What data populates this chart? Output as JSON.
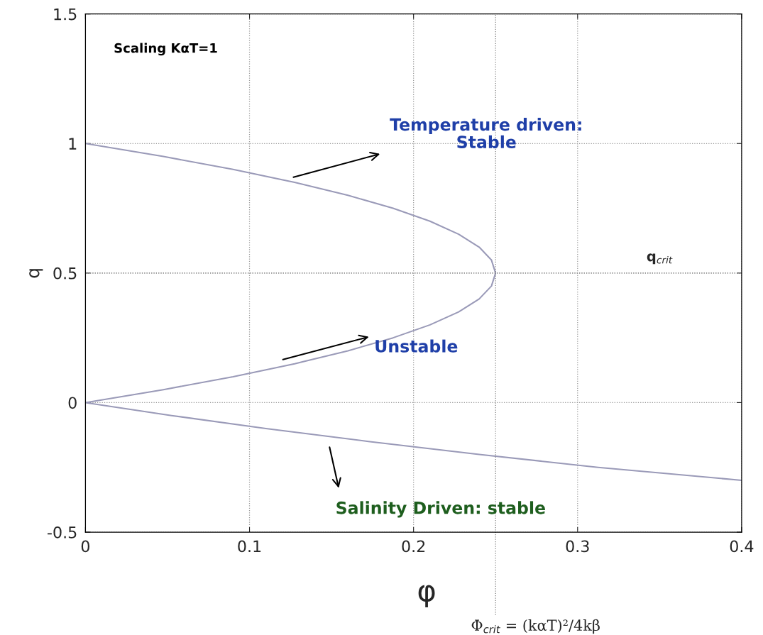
{
  "chart_data": {
    "type": "line",
    "xlabel": "φ",
    "ylabel": "q",
    "series": [
      {
        "color": "#9a9ab8",
        "x": [
          0,
          0.0475,
          0.09,
          0.1275,
          0.16,
          0.1875,
          0.21,
          0.2275,
          0.24,
          0.2475,
          0.25,
          0.2475,
          0.24,
          0.2275,
          0.21,
          0.1875,
          0.16,
          0.1275,
          0.09,
          0.0475,
          0,
          0.0525,
          0.11,
          0.1725,
          0.24,
          0.3125,
          0.4
        ],
        "values": [
          1,
          0.95,
          0.9,
          0.85,
          0.8,
          0.75,
          0.7,
          0.65,
          0.6,
          0.55,
          0.5,
          0.45,
          0.4,
          0.35,
          0.3,
          0.25,
          0.2,
          0.15,
          0.1,
          0.05,
          0,
          -0.05,
          -0.1,
          -0.15,
          -0.2,
          -0.25,
          -0.3
        ]
      }
    ],
    "xlim": [
      0,
      0.4
    ],
    "xticks": [
      0,
      0.1,
      0.2,
      0.3,
      0.4
    ],
    "ylim": [
      -0.5,
      1.5
    ],
    "yticks": [
      -0.5,
      0,
      0.5,
      1,
      1.5
    ],
    "grid": true,
    "marker": "none",
    "line_style": "solid",
    "ref_lines": [
      {
        "axis": "x",
        "value": 0.25,
        "label": "Φ$_{crit}$ = (kαT)²/4kβ",
        "color": "#808080",
        "line_style": "dotted"
      },
      {
        "axis": "y",
        "value": 0.5,
        "label": "q$_{crit}$",
        "color": "#808080",
        "line_style": "dotted"
      }
    ],
    "annotations": [
      "Scaling KαT=1",
      "Temperature driven:\nStable",
      "Unstable",
      "Salinity Driven: stable"
    ]
  }
}
